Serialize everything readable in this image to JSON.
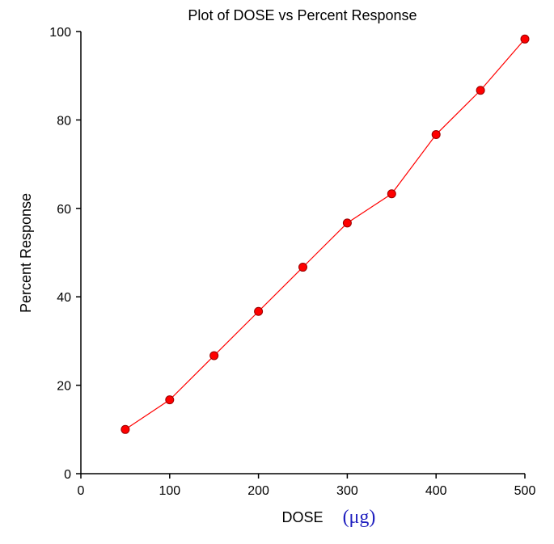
{
  "chart_data": {
    "type": "line",
    "title": "Plot of DOSE vs Percent Response",
    "xlabel": "DOSE",
    "xlabel_unit": "(μg)",
    "ylabel": "Percent Response",
    "xlim": [
      0,
      500
    ],
    "ylim": [
      0,
      100
    ],
    "x_ticks": [
      0,
      100,
      200,
      300,
      400,
      500
    ],
    "y_ticks": [
      0,
      20,
      40,
      60,
      80,
      100
    ],
    "grid": false,
    "legend": "none",
    "series": [
      {
        "x": [
          50,
          100,
          150,
          200,
          250,
          300,
          350,
          400,
          450,
          500
        ],
        "y": [
          10,
          16.7,
          26.7,
          36.7,
          46.7,
          56.7,
          63.3,
          76.7,
          86.7,
          98.3
        ],
        "color": "#ff0000",
        "marker": "circle"
      }
    ],
    "colors": {
      "line": "#ff0000",
      "marker_fill": "#ff0000",
      "marker_stroke": "#990000",
      "unit_text": "#1f1fbf",
      "axis": "#000000"
    }
  }
}
